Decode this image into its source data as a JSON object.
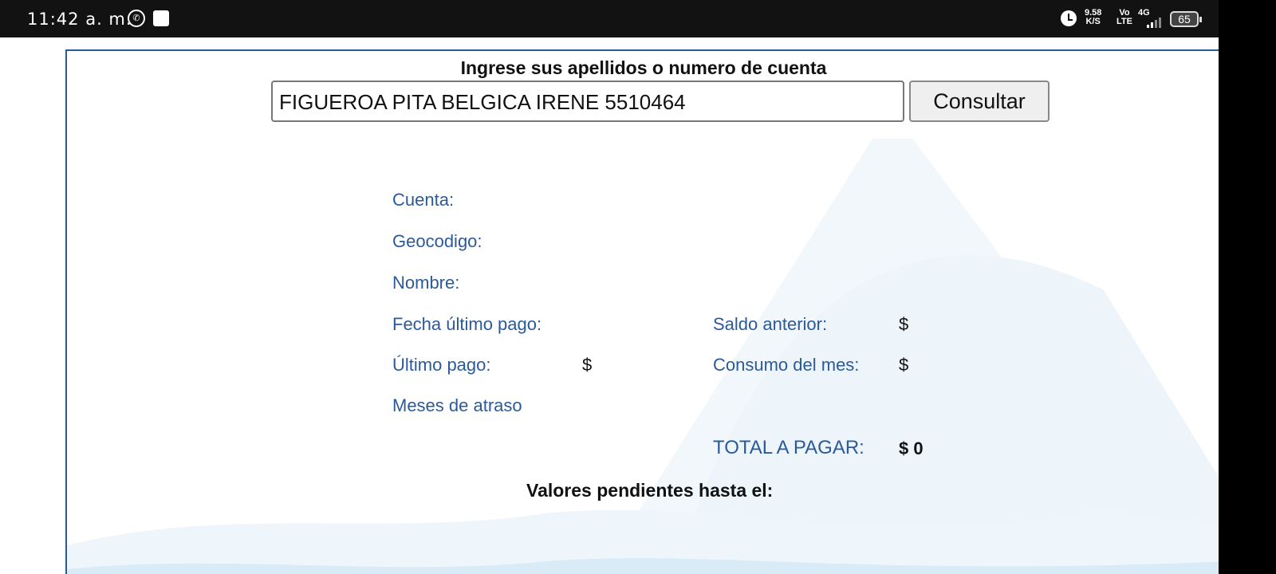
{
  "status_bar": {
    "time": "11:42 a. m.",
    "net_speed": "9.58",
    "net_unit": "K/S",
    "volte_top": "Vo",
    "volte_bottom": "LTE",
    "network": "4G",
    "battery": "65",
    "icons": [
      "whatsapp-icon",
      "notification-square-icon",
      "alarm-icon",
      "signal-icon",
      "battery-icon"
    ]
  },
  "form": {
    "prompt": "Ingrese sus apellidos o numero de cuenta",
    "search_value": "FIGUEROA PITA BELGICA IRENE 5510464",
    "button": "Consultar"
  },
  "details": {
    "cuenta": "Cuenta:",
    "geocodigo": "Geocodigo:",
    "nombre": "Nombre:",
    "fecha_ultimo_pago": "Fecha último pago:",
    "ultimo_pago": "Último pago:",
    "ultimo_pago_value": "$",
    "meses_atraso": "Meses de atraso",
    "saldo_anterior": "Saldo anterior:",
    "saldo_anterior_value": "$",
    "consumo_mes": "Consumo del mes:",
    "consumo_mes_value": "$",
    "total": "TOTAL A PAGAR:",
    "total_value": "$ 0"
  },
  "pendientes": "Valores pendientes hasta el:",
  "colors": {
    "label": "#2b5a9a",
    "frame": "#2b5a9a",
    "watermark": "#eaf4fa"
  }
}
